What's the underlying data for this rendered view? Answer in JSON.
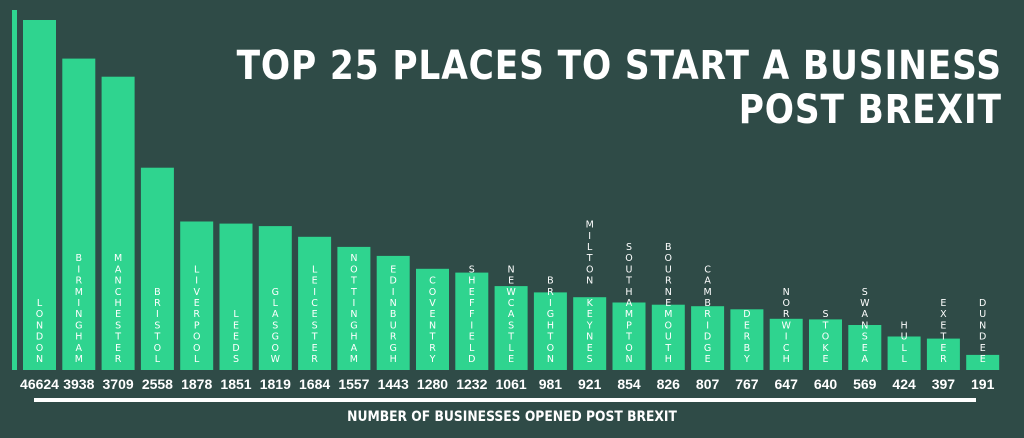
{
  "chart_data": {
    "type": "bar",
    "title_lines": [
      "TOP 25 PLACES TO START A BUSINESS",
      "POST BREXIT"
    ],
    "xlabel": "NUMBER OF BUSINESSES OPENED POST BREXIT",
    "ylabel": "",
    "categories": [
      "LONDON",
      "BIRMINGHAM",
      "MANCHESTER",
      "BRISTOL",
      "LIVERPOOL",
      "LEEDS",
      "GLASGOW",
      "LEICESTER",
      "NOTTINGHAM",
      "EDINBURGH",
      "COVENTRY",
      "SHEFFIELD",
      "NEWCASTLE",
      "BRIGHTON",
      "MILTON KEYNES",
      "SOUTHAMPTON",
      "BOURNEMOUTH",
      "CAMBRIDGE",
      "DERBY",
      "NORWICH",
      "STOKE",
      "SWANSEA",
      "HULL",
      "EXETER",
      "DUNDEE"
    ],
    "values": [
      46624,
      3938,
      3709,
      2558,
      1878,
      1851,
      1819,
      1684,
      1557,
      1443,
      1280,
      1232,
      1061,
      981,
      921,
      854,
      826,
      807,
      767,
      647,
      640,
      569,
      424,
      397,
      191
    ],
    "grid": false,
    "legend": "none",
    "colors": {
      "bar": "#2fd48f",
      "background": "#2f4b47",
      "text": "#ffffff"
    }
  }
}
